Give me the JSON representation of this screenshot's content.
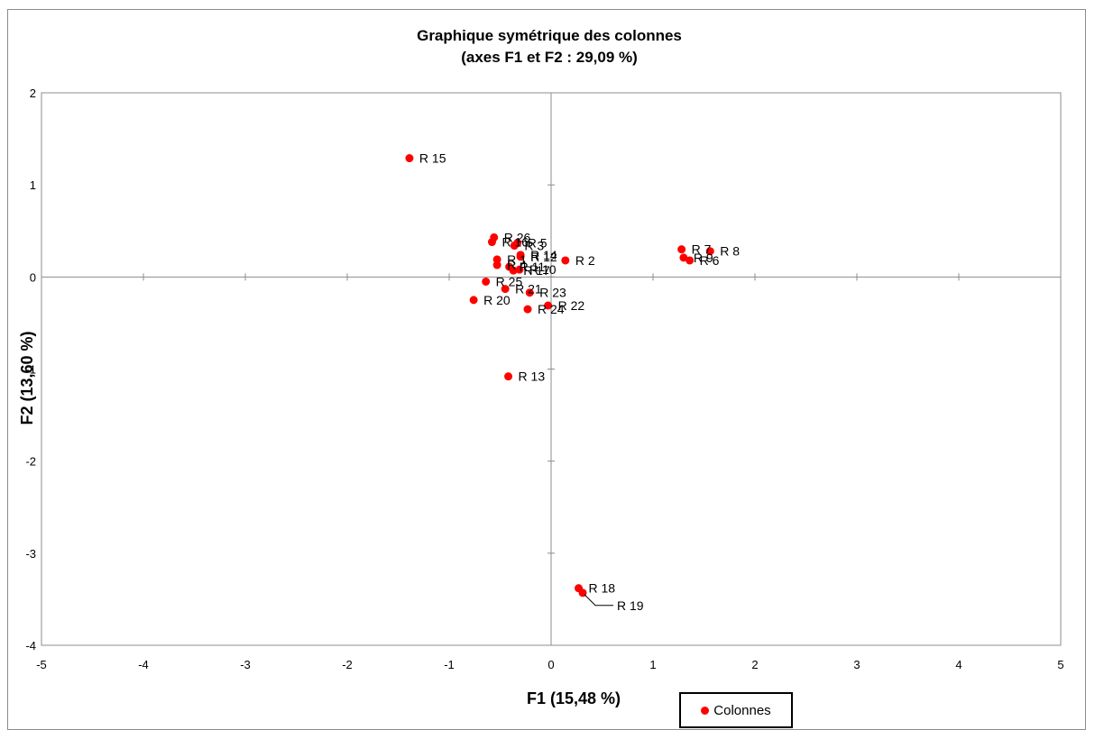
{
  "chart_data": {
    "type": "scatter",
    "title": [
      "Graphique symétrique des colonnes",
      "(axes F1 et F2 : 29,09 %)"
    ],
    "xlabel": "F1 (15,48 %)",
    "ylabel": "F2 (13,60 %)",
    "xlim": [
      -5,
      5
    ],
    "ylim": [
      -4,
      2
    ],
    "xticks": [
      "-5",
      "-4",
      "-3",
      "-2",
      "-1",
      "0",
      "1",
      "2",
      "3",
      "4",
      "5"
    ],
    "yticks": [
      "2",
      "1",
      "0",
      "-1",
      "-2",
      "-3",
      "-4"
    ],
    "grid": false,
    "legend_position": "bottom-center",
    "series": [
      {
        "name": "Colonnes",
        "color": "#ff0000",
        "points": [
          {
            "label": "R 15",
            "x": -1.39,
            "y": 1.29
          },
          {
            "label": "R 26",
            "x": -0.56,
            "y": 0.43
          },
          {
            "label": "R 16",
            "x": -0.58,
            "y": 0.38
          },
          {
            "label": "R 5",
            "x": -0.33,
            "y": 0.37
          },
          {
            "label": "R 3",
            "x": -0.36,
            "y": 0.34
          },
          {
            "label": "R 14",
            "x": -0.3,
            "y": 0.24
          },
          {
            "label": "R 12",
            "x": -0.3,
            "y": 0.22
          },
          {
            "label": "R 2",
            "x": 0.14,
            "y": 0.18
          },
          {
            "label": "R 1",
            "x": -0.53,
            "y": 0.19
          },
          {
            "label": "R 4",
            "x": -0.53,
            "y": 0.13
          },
          {
            "label": "R 11",
            "x": -0.41,
            "y": 0.11
          },
          {
            "label": "R 17",
            "x": -0.37,
            "y": 0.07
          },
          {
            "label": "R 10",
            "x": -0.31,
            "y": 0.08
          },
          {
            "label": "R 7",
            "x": 1.28,
            "y": 0.3
          },
          {
            "label": "R 8",
            "x": 1.56,
            "y": 0.28
          },
          {
            "label": "R 9",
            "x": 1.3,
            "y": 0.21
          },
          {
            "label": "R 6",
            "x": 1.36,
            "y": 0.18
          },
          {
            "label": "R 25",
            "x": -0.64,
            "y": -0.05
          },
          {
            "label": "R 21",
            "x": -0.45,
            "y": -0.13
          },
          {
            "label": "R 23",
            "x": -0.21,
            "y": -0.17
          },
          {
            "label": "R 20",
            "x": -0.76,
            "y": -0.25
          },
          {
            "label": "R 22",
            "x": -0.03,
            "y": -0.31
          },
          {
            "label": "R 24",
            "x": -0.23,
            "y": -0.35
          },
          {
            "label": "R 13",
            "x": -0.42,
            "y": -1.08
          },
          {
            "label": "R 18",
            "x": 0.27,
            "y": -3.38
          },
          {
            "label": "R 19",
            "x": 0.31,
            "y": -3.43
          }
        ]
      }
    ]
  }
}
